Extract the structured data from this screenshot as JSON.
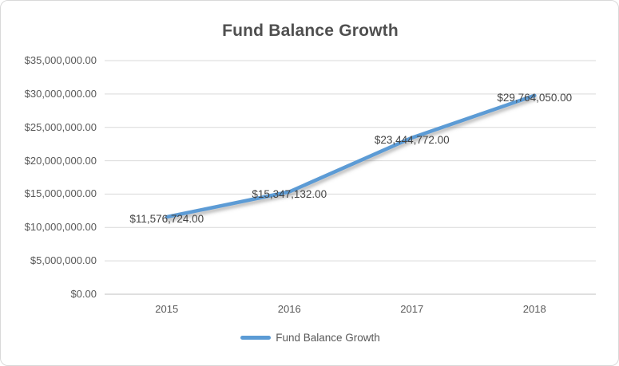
{
  "chart_data": {
    "type": "line",
    "title": "Fund Balance Growth",
    "categories": [
      "2015",
      "2016",
      "2017",
      "2018"
    ],
    "series": [
      {
        "name": "Fund Balance Growth",
        "values": [
          11576724,
          15347132,
          23444772,
          29764050
        ],
        "data_labels": [
          "$11,576,724.00",
          "$15,347,132.00",
          "$23,444,772.00",
          "$29,764,050.00"
        ],
        "color": "#5B9BD5"
      }
    ],
    "xlabel": "",
    "ylabel": "",
    "ylim": [
      0,
      35000000
    ],
    "y_tick_step": 5000000,
    "y_tick_labels_bottom_to_top": [
      "$0.00",
      "$5,000,000.00",
      "$10,000,000.00",
      "$15,000,000.00",
      "$20,000,000.00",
      "$25,000,000.00",
      "$30,000,000.00",
      "$35,000,000.00"
    ],
    "grid": "horizontal-major",
    "legend": {
      "position": "bottom",
      "entries": [
        "Fund Balance Growth"
      ]
    },
    "colors": {
      "series_line": "#5B9BD5",
      "gridline": "#D9D9D9",
      "axis_line": "#BFBFBF",
      "title_text": "#4F4F4F",
      "axis_text": "#595959",
      "data_label_text": "#444444",
      "background": "#FFFFFF",
      "border": "#D9D9D9"
    }
  }
}
